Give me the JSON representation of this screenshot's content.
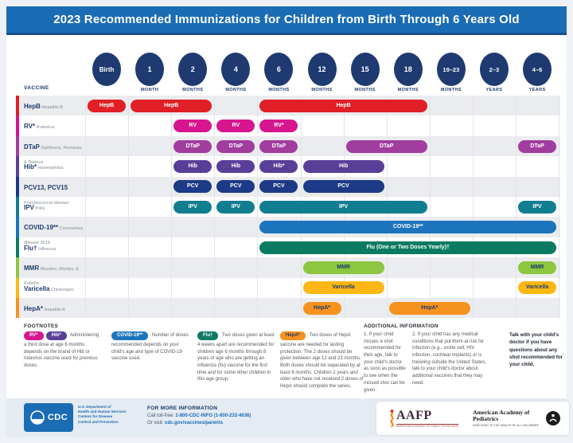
{
  "title": "2023 Recommended Immunizations for Children from Birth Through 6 Years Old",
  "labels": {
    "vaccine": "VACCINE"
  },
  "columns": [
    {
      "value": "Birth",
      "unit": ""
    },
    {
      "value": "1",
      "unit": "MONTH"
    },
    {
      "value": "2",
      "unit": "MONTHS"
    },
    {
      "value": "4",
      "unit": "MONTHS"
    },
    {
      "value": "6",
      "unit": "MONTHS"
    },
    {
      "value": "12",
      "unit": "MONTHS"
    },
    {
      "value": "15",
      "unit": "MONTHS"
    },
    {
      "value": "18",
      "unit": "MONTHS"
    },
    {
      "value": "19–23",
      "unit": "MONTHS"
    },
    {
      "value": "2–3",
      "unit": "YEARS"
    },
    {
      "value": "4–6",
      "unit": "YEARS"
    }
  ],
  "schedule": {
    "rows": [
      {
        "abbr": "HepB",
        "disease": "Hepatitis B",
        "color": "#e01f26",
        "bars": [
          {
            "from": 0,
            "to": 0,
            "label": "HepB"
          },
          {
            "from": 1,
            "to": 2,
            "label": "HepB"
          },
          {
            "from": 4,
            "to": 7,
            "label": "HepB"
          }
        ]
      },
      {
        "abbr": "RV*",
        "disease": "Rotavirus",
        "color": "#d6158f",
        "bars": [
          {
            "from": 2,
            "to": 2,
            "label": "RV"
          },
          {
            "from": 3,
            "to": 3,
            "label": "RV"
          },
          {
            "from": 4,
            "to": 4,
            "label": "RV*"
          }
        ]
      },
      {
        "abbr": "DTaP",
        "disease": "Diphtheria, Pertussis, & Tetanus",
        "color": "#a13d9e",
        "bars": [
          {
            "from": 2,
            "to": 2,
            "label": "DTaP"
          },
          {
            "from": 3,
            "to": 3,
            "label": "DTaP"
          },
          {
            "from": 4,
            "to": 4,
            "label": "DTaP"
          },
          {
            "from": 6,
            "to": 7,
            "label": "DTaP"
          },
          {
            "from": 10,
            "to": 10,
            "label": "DTaP"
          }
        ]
      },
      {
        "abbr": "Hib*",
        "disease": "Haemophilus influenzae type b",
        "color": "#5a3f99",
        "bars": [
          {
            "from": 2,
            "to": 2,
            "label": "Hib"
          },
          {
            "from": 3,
            "to": 3,
            "label": "Hib"
          },
          {
            "from": 4,
            "to": 4,
            "label": "Hib*"
          },
          {
            "from": 5,
            "to": 6,
            "label": "Hib"
          }
        ]
      },
      {
        "abbr": "PCV13, PCV15",
        "disease": "Pneumococcal disease",
        "color": "#1c3a85",
        "bars": [
          {
            "from": 2,
            "to": 2,
            "label": "PCV"
          },
          {
            "from": 3,
            "to": 3,
            "label": "PCV"
          },
          {
            "from": 4,
            "to": 4,
            "label": "PCV"
          },
          {
            "from": 5,
            "to": 6,
            "label": "PCV"
          }
        ]
      },
      {
        "abbr": "IPV",
        "disease": "Polio",
        "color": "#117d90",
        "bars": [
          {
            "from": 2,
            "to": 2,
            "label": "IPV"
          },
          {
            "from": 3,
            "to": 3,
            "label": "IPV"
          },
          {
            "from": 4,
            "to": 7,
            "label": "IPV"
          },
          {
            "from": 10,
            "to": 10,
            "label": "IPV"
          }
        ]
      },
      {
        "abbr": "COVID-19**",
        "disease": "Coronavirus disease 2019",
        "color": "#1c75bc",
        "bars": [
          {
            "from": 4,
            "to": 10,
            "label": "COVID-19**"
          }
        ]
      },
      {
        "abbr": "Flu†",
        "disease": "Influenza",
        "color": "#0a7b61",
        "bars": [
          {
            "from": 4,
            "to": 10,
            "label": "Flu (One or Two Doses Yearly)†"
          }
        ]
      },
      {
        "abbr": "MMR",
        "disease": "Measles, Mumps, & Rubella",
        "color": "#8dc63f",
        "bars": [
          {
            "from": 5,
            "to": 6,
            "label": "MMR",
            "dark": true
          },
          {
            "from": 10,
            "to": 10,
            "label": "MMR",
            "dark": true
          }
        ]
      },
      {
        "abbr": "Varicella",
        "disease": "Chickenpox",
        "color": "#fdb714",
        "bars": [
          {
            "from": 5,
            "to": 6,
            "label": "Varicella",
            "dark": true
          },
          {
            "from": 10,
            "to": 10,
            "label": "Varicella",
            "dark": true
          }
        ]
      },
      {
        "abbr": "HepA*",
        "disease": "Hepatitis A",
        "color": "#f6921e",
        "bars": [
          {
            "from": 5,
            "to": 5,
            "label": "HepA*",
            "dark": true
          },
          {
            "from": 7,
            "to": 8,
            "label": "HepA*",
            "dark": true
          }
        ]
      }
    ]
  },
  "footnotes": {
    "heading": "FOOTNOTES",
    "items": [
      {
        "pills": [
          {
            "label": "RV*",
            "color": "#d6158f"
          },
          {
            "label": "Hib*",
            "color": "#5a3f99"
          }
        ],
        "text": "Administering a third dose at age 6 months depends on the brand of Hib or rotavirus vaccine used for previous doses."
      },
      {
        "pills": [
          {
            "label": "COVID-19**",
            "color": "#1c75bc"
          }
        ],
        "text": "Number of doses recommended depends on your child's age and type of COVID-19 vaccine used."
      },
      {
        "pills": [
          {
            "label": "Flu†",
            "color": "#0a7b61"
          }
        ],
        "text": "Two doses given at least 4 weeks apart are recommended for children age 6 months through 8 years of age who are getting an influenza (flu) vaccine for the first time and for some other children in this age group."
      },
      {
        "pills": [
          {
            "label": "HepA*",
            "color": "#f6921e",
            "dark": true
          }
        ],
        "text": "Two doses of HepA vaccine are needed for lasting protection. The 2 doses should be given between age 12 and 23 months. Both doses should be separated by at least 6 months. Children 2 years and older who have not received 2 doses of HepA should complete the series."
      }
    ]
  },
  "additional_info": {
    "heading": "ADDITIONAL INFORMATION",
    "items": [
      "1. If your child misses a shot recommended for their age, talk to your child's doctor as soon as possible to see when the missed shot can be given.",
      "2. If your child has any medical conditions that put them at risk for infection (e.g., sickle cell, HIV infection, cochlear implants) or is traveling outside the United States, talk to your child's doctor about additional vaccines that they may need."
    ],
    "talk_note": "Talk with your child's doctor if you have questions about any shot recommended for your child."
  },
  "footer": {
    "cdc": {
      "logo_text": "CDC",
      "agency_lines": [
        "U.S. Department of",
        "Health and Human Services",
        "Centers for Disease",
        "Control and Prevention"
      ]
    },
    "more_info": {
      "heading": "FOR MORE INFORMATION",
      "call_label": "Call toll-free:",
      "phone": "1-800-CDC-INFO (1-800-232-4636)",
      "visit_label": "Or visit:",
      "url": "cdc.gov/vaccines/parents"
    },
    "aafp": {
      "name": "AAFP",
      "tagline": "AMERICAN ACADEMY OF FAMILY PHYSICIANS"
    },
    "aap": {
      "name": "American Academy of Pediatrics",
      "tagline": "DEDICATED TO THE HEALTH OF ALL CHILDREN®"
    }
  },
  "colors": {
    "header_blue": "#1a6cb4",
    "navy": "#1e3a70",
    "stripe": "#ebecef",
    "gridline": "#e2e4e9",
    "footer_band": "#e5ebf3"
  }
}
